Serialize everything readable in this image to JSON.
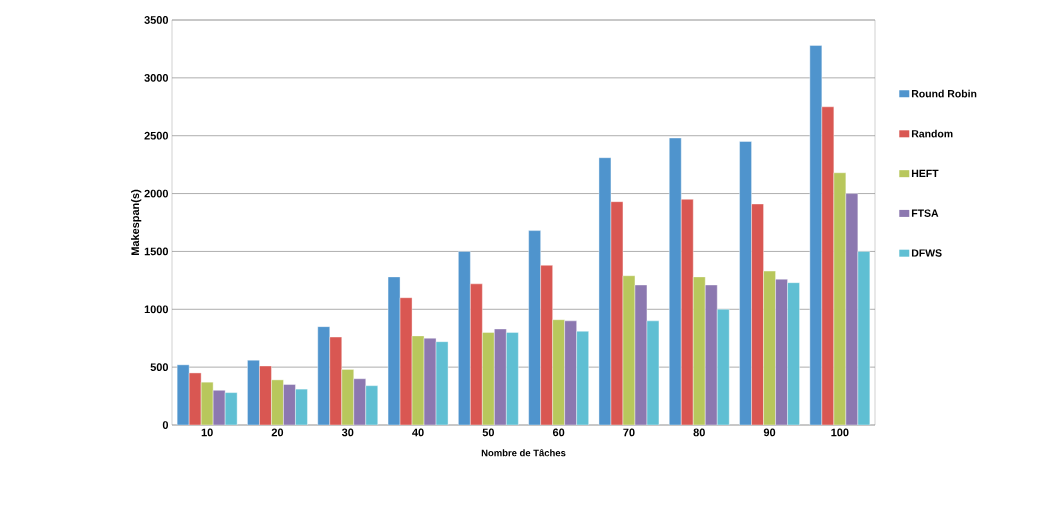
{
  "chart_data": {
    "type": "bar",
    "xlabel": "Nombre de Tâches",
    "ylabel": "Makespan(s)",
    "categories": [
      "10",
      "20",
      "30",
      "40",
      "50",
      "60",
      "70",
      "80",
      "90",
      "100"
    ],
    "series": [
      {
        "name": "Round Robin",
        "color": "#4f94cd",
        "values": [
          520,
          560,
          850,
          1280,
          1500,
          1680,
          2310,
          2480,
          2450,
          3280
        ]
      },
      {
        "name": "Random",
        "color": "#d95752",
        "values": [
          450,
          510,
          760,
          1100,
          1220,
          1380,
          1930,
          1950,
          1910,
          2750
        ]
      },
      {
        "name": "HEFT",
        "color": "#b8c75c",
        "values": [
          370,
          390,
          480,
          770,
          800,
          910,
          1290,
          1280,
          1330,
          2180
        ]
      },
      {
        "name": "FTSA",
        "color": "#8c78b0",
        "values": [
          300,
          350,
          400,
          750,
          830,
          900,
          1210,
          1210,
          1260,
          2000
        ]
      },
      {
        "name": "DFWS",
        "color": "#5fbfd3",
        "values": [
          280,
          310,
          340,
          720,
          800,
          810,
          900,
          1000,
          1230,
          1500
        ]
      }
    ],
    "ylim": [
      0,
      3500
    ],
    "yticks": [
      0,
      500,
      1000,
      1500,
      2000,
      2500,
      3000,
      3500
    ],
    "grid": "y",
    "legend": "right"
  }
}
